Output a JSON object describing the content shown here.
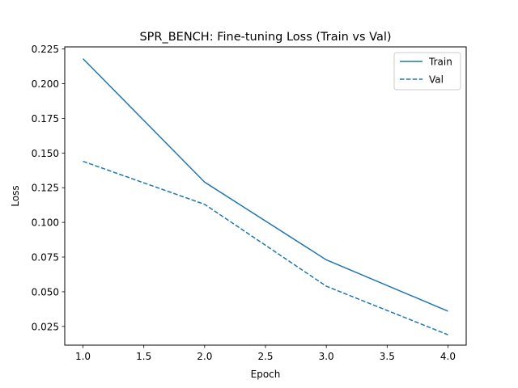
{
  "chart_data": {
    "type": "line",
    "title": "SPR_BENCH: Fine-tuning Loss (Train vs Val)",
    "xlabel": "Epoch",
    "ylabel": "Loss",
    "xlim": [
      0.85,
      4.15
    ],
    "ylim": [
      0.0115,
      0.2265
    ],
    "xticks": [
      1.0,
      1.5,
      2.0,
      2.5,
      3.0,
      3.5,
      4.0
    ],
    "xtick_labels": [
      "1.0",
      "1.5",
      "2.0",
      "2.5",
      "3.0",
      "3.5",
      "4.0"
    ],
    "yticks": [
      0.025,
      0.05,
      0.075,
      0.1,
      0.125,
      0.15,
      0.175,
      0.2,
      0.225
    ],
    "ytick_labels": [
      "0.025",
      "0.050",
      "0.075",
      "0.100",
      "0.125",
      "0.150",
      "0.175",
      "0.200",
      "0.225"
    ],
    "grid": false,
    "legend_position": "top-right",
    "x": [
      1,
      2,
      3,
      4
    ],
    "series": [
      {
        "name": "Train",
        "values": [
          0.218,
          0.129,
          0.073,
          0.036
        ],
        "color": "#1f77b4",
        "style": "solid"
      },
      {
        "name": "Val",
        "values": [
          0.144,
          0.113,
          0.054,
          0.019
        ],
        "color": "#1f77b4",
        "style": "dashed"
      }
    ]
  }
}
